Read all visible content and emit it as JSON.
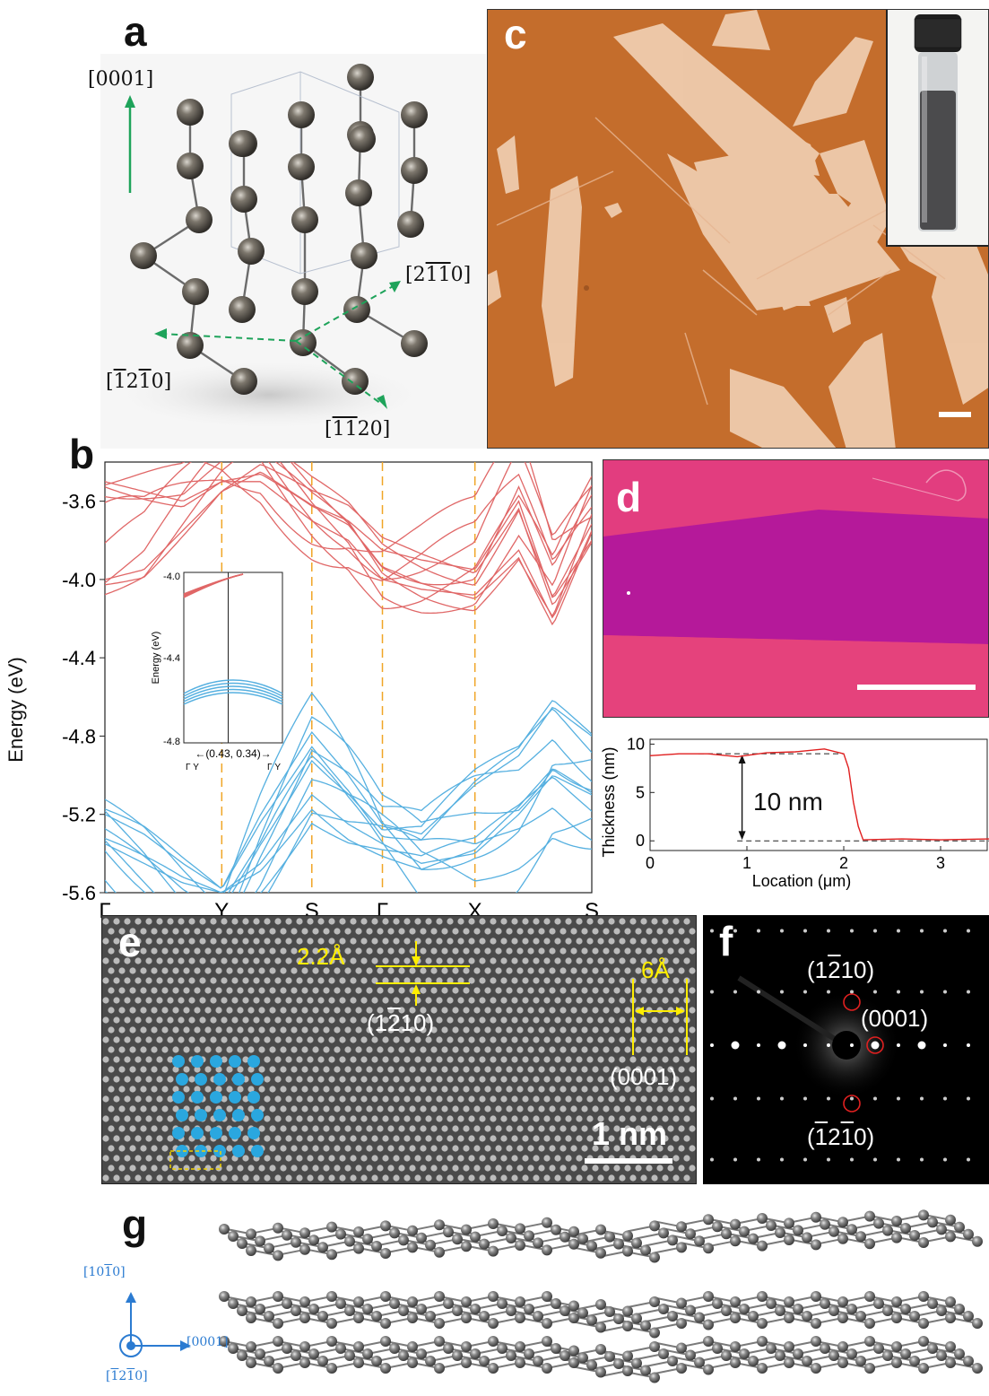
{
  "figure": {
    "panel_labels": {
      "a": "a",
      "b": "b",
      "c": "c",
      "d": "d",
      "e": "e",
      "f": "f",
      "g": "g"
    },
    "panel_a": {
      "directions": [
        {
          "pre": "[",
          "ol": "",
          "plain1": "0001",
          "post": "]"
        },
        {
          "pre": "[2",
          "ol": "11",
          "plain1": "0",
          "post": "]"
        },
        {
          "pre": "[",
          "ol": "1",
          "plain1": "2",
          "ol2": "1",
          "plain2": "0]"
        },
        {
          "pre": "[",
          "ol": "11",
          "plain1": "20",
          "post": "]"
        }
      ]
    },
    "panel_b": {
      "y_axis_label": "Energy (eV)",
      "inset": {
        "y_label": "Energy (eV)",
        "k_label": "(0.43, 0.34)",
        "x_left": "Γ Y",
        "x_right": "Γ Y"
      },
      "colors": {
        "conduction": "#e06767",
        "valence": "#56b0e0",
        "kpath_lines": "#f0a526"
      }
    },
    "panel_d_profile": {
      "annotation": "10 nm"
    },
    "panel_e": {
      "spacing_1": "2.2Å",
      "spacing_2": "6Å",
      "plane_1": "(1",
      "plane_1_ol": "2",
      "plane_1_post": "10)",
      "plane_2": "(0001)",
      "scalebar": "1 nm"
    },
    "panel_f": {
      "spot_top_pre": "(1",
      "spot_top_ol": "2",
      "spot_top_post": "10)",
      "spot_mid": "(0001)",
      "spot_bot_pre": "(",
      "spot_bot_ol": "1",
      "spot_bot_mid": "2",
      "spot_bot_ol2": "1",
      "spot_bot_post": "0)"
    },
    "panel_g": {
      "axis_up": "[10",
      "axis_up_ol": "1",
      "axis_up_post": "0]",
      "axis_right": "[0001]",
      "axis_out": "[",
      "axis_out_ol": "1",
      "axis_out_mid": "2",
      "axis_out_ol2": "1",
      "axis_out_post": "0]"
    }
  },
  "chart_data": [
    {
      "type": "line",
      "panel": "b",
      "ylabel": "Energy (eV)",
      "xlabel": "",
      "ylim": [
        -5.6,
        -3.4
      ],
      "yticks": [
        -3.6,
        -4.0,
        -4.4,
        -4.8,
        -5.2,
        -5.6
      ],
      "x_tick_labels": [
        "Γ",
        "Y",
        "S",
        "Γ",
        "X",
        "S"
      ],
      "x_ticks_frac": [
        0,
        0.24,
        0.425,
        0.57,
        0.76,
        1.0
      ],
      "series": [
        {
          "band": "conduction",
          "x": [
            0,
            0.08,
            0.16,
            0.24,
            0.32,
            0.425,
            0.5,
            0.57,
            0.65,
            0.76,
            0.85,
            0.92,
            1.0
          ],
          "y": [
            -4.0,
            -3.95,
            -3.75,
            -3.55,
            -3.45,
            -3.62,
            -3.7,
            -3.85,
            -3.9,
            -3.95,
            -3.6,
            -4.1,
            -3.8
          ]
        },
        {
          "band": "conduction",
          "x": [
            0,
            0.08,
            0.16,
            0.24,
            0.32,
            0.425,
            0.5,
            0.57,
            0.65,
            0.76,
            0.85,
            0.92,
            1.0
          ],
          "y": [
            -3.5,
            -3.55,
            -3.6,
            -3.5,
            -3.5,
            -3.7,
            -3.8,
            -4.0,
            -4.05,
            -4.08,
            -3.85,
            -4.2,
            -3.75
          ]
        },
        {
          "band": "valence",
          "x": [
            0,
            0.08,
            0.16,
            0.24,
            0.32,
            0.425,
            0.5,
            0.57,
            0.65,
            0.76,
            0.85,
            0.92,
            1.0
          ],
          "y": [
            -5.2,
            -5.3,
            -5.45,
            -5.58,
            -5.2,
            -4.78,
            -5.0,
            -5.25,
            -5.3,
            -5.05,
            -4.9,
            -4.65,
            -4.8
          ]
        },
        {
          "band": "valence",
          "x": [
            0,
            0.08,
            0.16,
            0.24,
            0.32,
            0.425,
            0.5,
            0.57,
            0.65,
            0.76,
            0.85,
            0.92,
            1.0
          ],
          "y": [
            -5.35,
            -5.45,
            -5.55,
            -5.6,
            -5.45,
            -5.1,
            -5.25,
            -5.35,
            -5.45,
            -5.4,
            -5.2,
            -5.0,
            -5.1
          ]
        }
      ]
    },
    {
      "type": "line",
      "panel": "d",
      "xlabel": "Location (μm)",
      "ylabel": "Thickness (nm)",
      "xlim": [
        0,
        3.5
      ],
      "ylim": [
        -1,
        10.5
      ],
      "xticks": [
        0,
        1,
        2,
        3
      ],
      "yticks": [
        0,
        5,
        10
      ],
      "series": [
        {
          "x": [
            0,
            0.3,
            0.6,
            0.9,
            1.2,
            1.5,
            1.8,
            2.0,
            2.05,
            2.1,
            2.15,
            2.2,
            2.6,
            3.0,
            3.5
          ],
          "y": [
            8.8,
            9.0,
            9.0,
            8.7,
            9.1,
            9.2,
            9.5,
            9.0,
            7.5,
            4.0,
            1.5,
            0.1,
            0.2,
            0.1,
            0.2
          ]
        }
      ]
    }
  ]
}
